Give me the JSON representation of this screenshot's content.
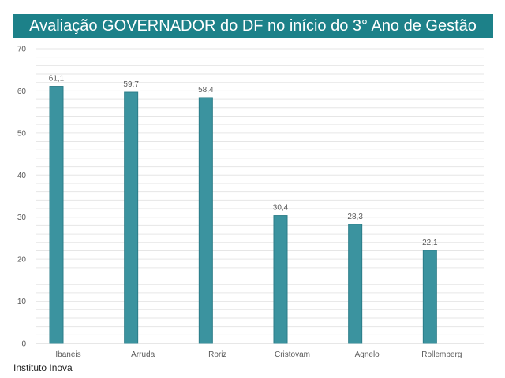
{
  "colors": {
    "title_bg": "#1d8189",
    "bar": "#3b939f",
    "bar_stroke": "#2b7d88",
    "grid": "#e6e6e6",
    "tick_text": "#595959"
  },
  "source": "Instituto Inova",
  "chart_data": {
    "type": "bar",
    "title": "Avaliação GOVERNADOR do DF no início do 3° Ano de Gestão",
    "xlabel": "",
    "ylabel": "",
    "categories": [
      "Ibaneis",
      "Arruda",
      "Roriz",
      "Cristovam",
      "Agnelo",
      "Rollemberg"
    ],
    "values": [
      61.1,
      59.7,
      58.4,
      30.4,
      28.3,
      22.1
    ],
    "value_labels": [
      "61,1",
      "59,7",
      "58,4",
      "30,4",
      "28,3",
      "22,1"
    ],
    "ylim": [
      0,
      70
    ],
    "yticks": [
      0,
      10,
      20,
      30,
      40,
      50,
      60,
      70
    ],
    "grid": true,
    "legend": "none"
  }
}
